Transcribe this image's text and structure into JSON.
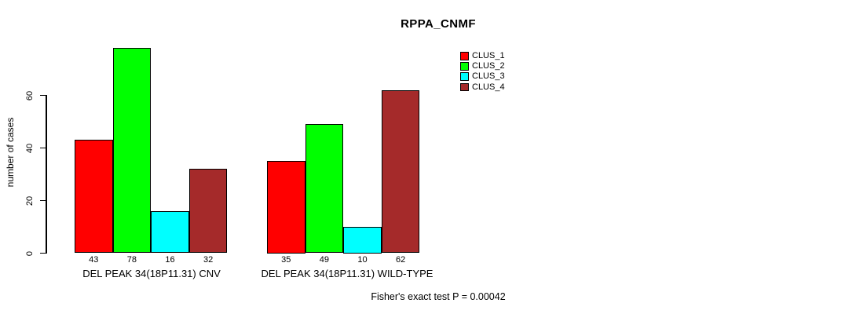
{
  "chart_data": {
    "type": "bar",
    "title": "RPPA_CNMF",
    "xlabel": "",
    "ylabel": "number of cases",
    "categories": [
      "DEL PEAK 34(18P11.31) CNV",
      "DEL PEAK 34(18P11.31) WILD-TYPE"
    ],
    "series": [
      {
        "name": "CLUS_1",
        "color": "#FF0000",
        "values": [
          43,
          35
        ]
      },
      {
        "name": "CLUS_2",
        "color": "#00FF00",
        "values": [
          78,
          49
        ]
      },
      {
        "name": "CLUS_3",
        "color": "#00FFFF",
        "values": [
          16,
          10
        ]
      },
      {
        "name": "CLUS_4",
        "color": "#A52A2A",
        "values": [
          32,
          62
        ]
      }
    ],
    "yticks": [
      0,
      20,
      40,
      60
    ],
    "ylim": [
      0,
      78
    ],
    "grid": false,
    "bar_borders": "black",
    "bar_value_labels_shown": true,
    "legend_position": "top-right",
    "annotation": "Fisher's exact test P = 0.00042"
  }
}
